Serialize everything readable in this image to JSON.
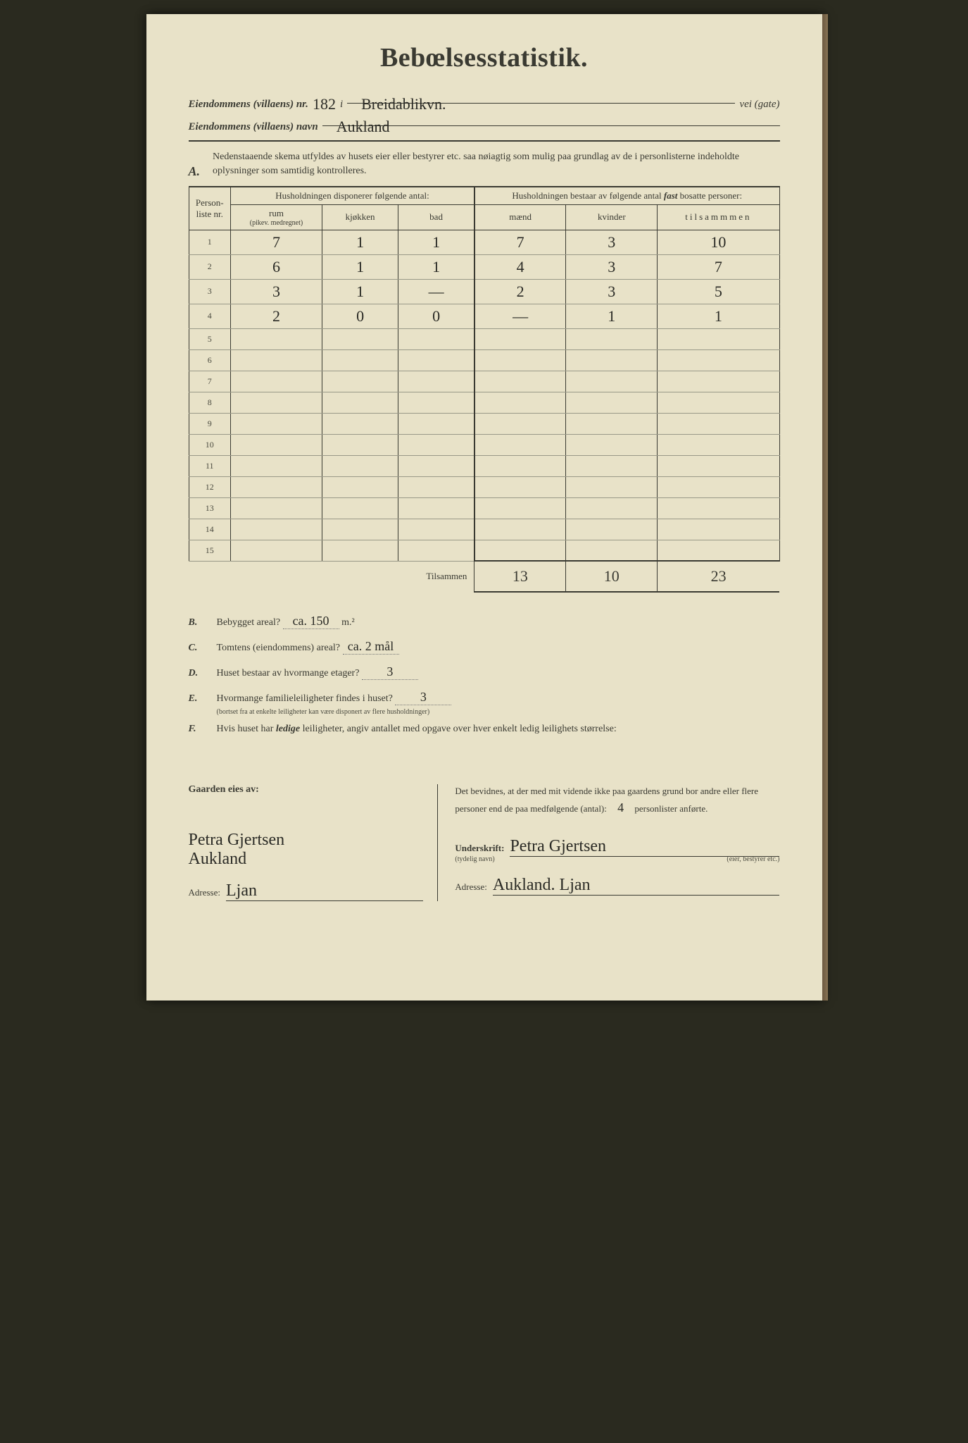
{
  "title": "Bebœlsesstatistik.",
  "header": {
    "line1_label_a": "Eiendommens (villaens) nr.",
    "line1_nr": "182",
    "line1_i": "i",
    "line1_street": "Breidablikvn.",
    "line1_suffix": "vei (gate)",
    "line2_label": "Eiendommens (villaens) navn",
    "line2_name": "Aukland"
  },
  "sectionA": {
    "label": "A.",
    "text": "Nedenstaaende skema utfyldes av husets eier eller bestyrer etc. saa nøiagtig som mulig paa grundlag av de i personlisterne indeholdte oplysninger som samtidig kontrolleres."
  },
  "table": {
    "col_nr_head": "Person-liste nr.",
    "disp_head": "Husholdningen disponerer følgende antal:",
    "rum_head": "rum",
    "rum_sub": "(pikev. medregnet)",
    "kjokken_head": "kjøkken",
    "bad_head": "bad",
    "bosatte_head_a": "Husholdningen bestaar av følgende antal ",
    "bosatte_head_fast": "fast",
    "bosatte_head_b": " bosatte personer:",
    "maend_head": "mænd",
    "kvinder_head": "kvinder",
    "tilsammen_head": "tilsammmen",
    "rows": [
      {
        "nr": "1",
        "rum": "7",
        "kj": "1",
        "bad": "1",
        "m": "7",
        "k": "3",
        "t": "10"
      },
      {
        "nr": "2",
        "rum": "6",
        "kj": "1",
        "bad": "1",
        "m": "4",
        "k": "3",
        "t": "7"
      },
      {
        "nr": "3",
        "rum": "3",
        "kj": "1",
        "bad": "—",
        "m": "2",
        "k": "3",
        "t": "5"
      },
      {
        "nr": "4",
        "rum": "2",
        "kj": "0",
        "bad": "0",
        "m": "—",
        "k": "1",
        "t": "1"
      },
      {
        "nr": "5",
        "rum": "",
        "kj": "",
        "bad": "",
        "m": "",
        "k": "",
        "t": ""
      },
      {
        "nr": "6",
        "rum": "",
        "kj": "",
        "bad": "",
        "m": "",
        "k": "",
        "t": ""
      },
      {
        "nr": "7",
        "rum": "",
        "kj": "",
        "bad": "",
        "m": "",
        "k": "",
        "t": ""
      },
      {
        "nr": "8",
        "rum": "",
        "kj": "",
        "bad": "",
        "m": "",
        "k": "",
        "t": ""
      },
      {
        "nr": "9",
        "rum": "",
        "kj": "",
        "bad": "",
        "m": "",
        "k": "",
        "t": ""
      },
      {
        "nr": "10",
        "rum": "",
        "kj": "",
        "bad": "",
        "m": "",
        "k": "",
        "t": ""
      },
      {
        "nr": "11",
        "rum": "",
        "kj": "",
        "bad": "",
        "m": "",
        "k": "",
        "t": ""
      },
      {
        "nr": "12",
        "rum": "",
        "kj": "",
        "bad": "",
        "m": "",
        "k": "",
        "t": ""
      },
      {
        "nr": "13",
        "rum": "",
        "kj": "",
        "bad": "",
        "m": "",
        "k": "",
        "t": ""
      },
      {
        "nr": "14",
        "rum": "",
        "kj": "",
        "bad": "",
        "m": "",
        "k": "",
        "t": ""
      },
      {
        "nr": "15",
        "rum": "",
        "kj": "",
        "bad": "",
        "m": "",
        "k": "",
        "t": ""
      }
    ],
    "tils_label": "Tilsammen",
    "sum_m": "13",
    "sum_k": "10",
    "sum_t": "23"
  },
  "questions": {
    "B": {
      "letter": "B.",
      "text_a": "Bebygget areal?",
      "val": "ca. 150",
      "unit": "m.²"
    },
    "C": {
      "letter": "C.",
      "text_a": "Tomtens (eiendommens) areal?",
      "val": "ca. 2 mål"
    },
    "D": {
      "letter": "D.",
      "text_a": "Huset bestaar av hvormange etager?",
      "val": "3"
    },
    "E": {
      "letter": "E.",
      "text_a": "Hvormange familieleiligheter findes i huset?",
      "val": "3",
      "sub": "(bortset fra at enkelte leiligheter kan være disponert av flere husholdninger)"
    },
    "F": {
      "letter": "F.",
      "text_a": "Hvis huset har ",
      "ledige": "ledige",
      "text_b": " leiligheter, angiv antallet med opgave over hver enkelt ledig leilighets størrelse:"
    }
  },
  "bottom": {
    "left_heading": "Gaarden eies av:",
    "left_sig1": "Petra Gjertsen",
    "left_sig2": "Aukland",
    "left_addr_label": "Adresse:",
    "left_addr": "Ljan",
    "right_text_a": "Det bevidnes, at der med mit vidende ikke paa gaardens grund bor andre eller flere personer end de paa medfølgende (antal):",
    "right_antal": "4",
    "right_text_b": "personlister anførte.",
    "under_label": "Underskrift:",
    "under_sub": "(tydelig navn)",
    "under_sig": "Petra Gjertsen",
    "under_sub2": "(eier, bestyrer etc.)",
    "right_addr_label": "Adresse:",
    "right_addr": "Aukland. Ljan"
  }
}
